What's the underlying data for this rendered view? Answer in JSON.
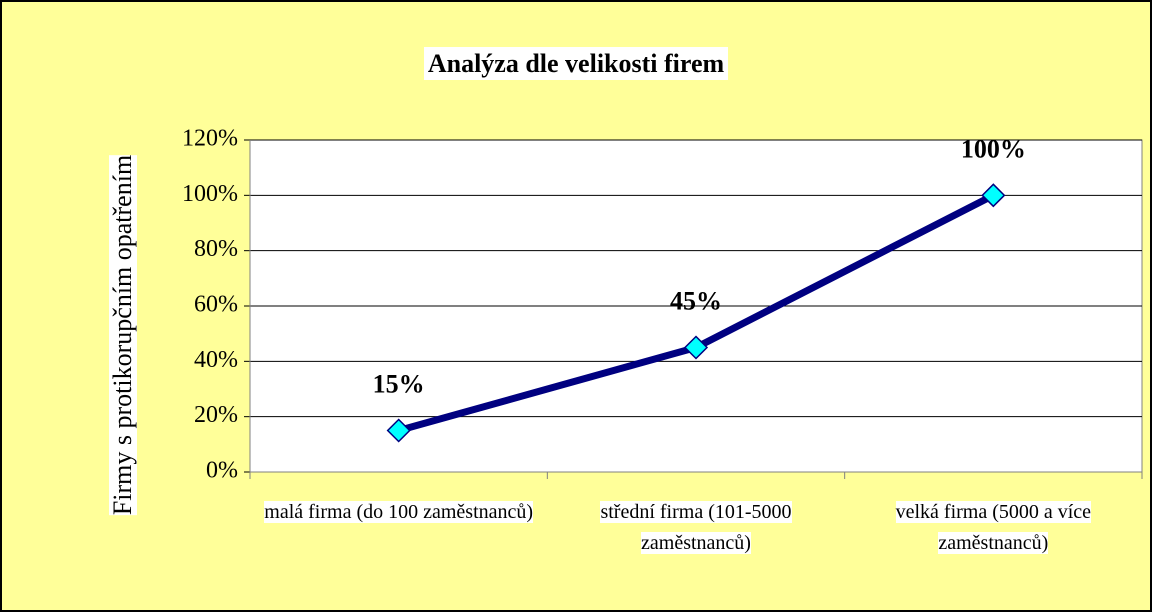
{
  "chart_data": {
    "type": "line",
    "title": "Analýza dle velikosti firem",
    "y_label": "Firmy s protikorupčním opatřením",
    "categories": [
      "malá firma (do 100 zaměstnanců)",
      "střední firma (101-5000 zaměstnanců)",
      "velká firma (5000 a více zaměstnanců)"
    ],
    "series": [
      {
        "name": "Firmy s protikorupčním opatřením",
        "color": "#000080",
        "marker_color": "#00ffff",
        "values": [
          15,
          45,
          100
        ],
        "value_labels": [
          "15%",
          "45%",
          "100%"
        ]
      }
    ],
    "ylim": [
      0,
      120
    ],
    "yticks": [
      {
        "value": 0,
        "label": "0%"
      },
      {
        "value": 20,
        "label": "20%"
      },
      {
        "value": 40,
        "label": "40%"
      },
      {
        "value": 60,
        "label": "60%"
      },
      {
        "value": 80,
        "label": "80%"
      },
      {
        "value": 100,
        "label": "100%"
      },
      {
        "value": 120,
        "label": "120%"
      }
    ],
    "grid": true,
    "legend": false
  }
}
